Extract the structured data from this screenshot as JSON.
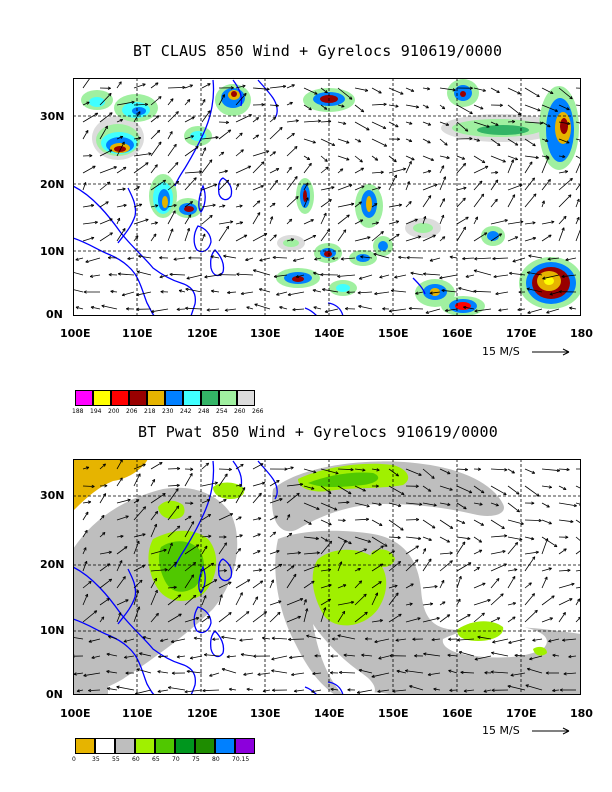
{
  "panels": [
    {
      "id": "claus",
      "title": "BT CLAUS 850 Wind + Gyrelocs 910619/0000",
      "lat_labels": [
        "30N",
        "20N",
        "10N",
        "0N"
      ],
      "lon_labels": [
        "100E",
        "110E",
        "120E",
        "130E",
        "140E",
        "150E",
        "160E",
        "170E",
        "180"
      ],
      "ref_vector": "15 M/S",
      "scale": {
        "colors": [
          "#ff00ff",
          "#ffff00",
          "#ff0000",
          "#990000",
          "#e6b400",
          "#0080ff",
          "#40ffff",
          "#33b466",
          "#a0f0a0",
          "#dcdcdc"
        ],
        "labels": [
          "188",
          "194",
          "200",
          "206",
          "218",
          "230",
          "242",
          "248",
          "254",
          "260",
          "266"
        ]
      }
    },
    {
      "id": "pwat",
      "title": "BT Pwat 850 Wind + Gyrelocs 910619/0000",
      "lat_labels": [
        "30N",
        "20N",
        "10N",
        "0N"
      ],
      "lon_labels": [
        "100E",
        "110E",
        "120E",
        "130E",
        "140E",
        "150E",
        "160E",
        "170E",
        "180"
      ],
      "ref_vector": "15 M/S",
      "scale": {
        "colors": [
          "#e6b400",
          "#ffffff",
          "#bebebe",
          "#a0f000",
          "#50c800",
          "#00961e",
          "#1e8c00",
          "#0080ff",
          "#8c00dc"
        ],
        "labels": [
          "0",
          "35",
          "55",
          "60",
          "65",
          "70",
          "75",
          "80",
          "70.15"
        ]
      }
    }
  ]
}
